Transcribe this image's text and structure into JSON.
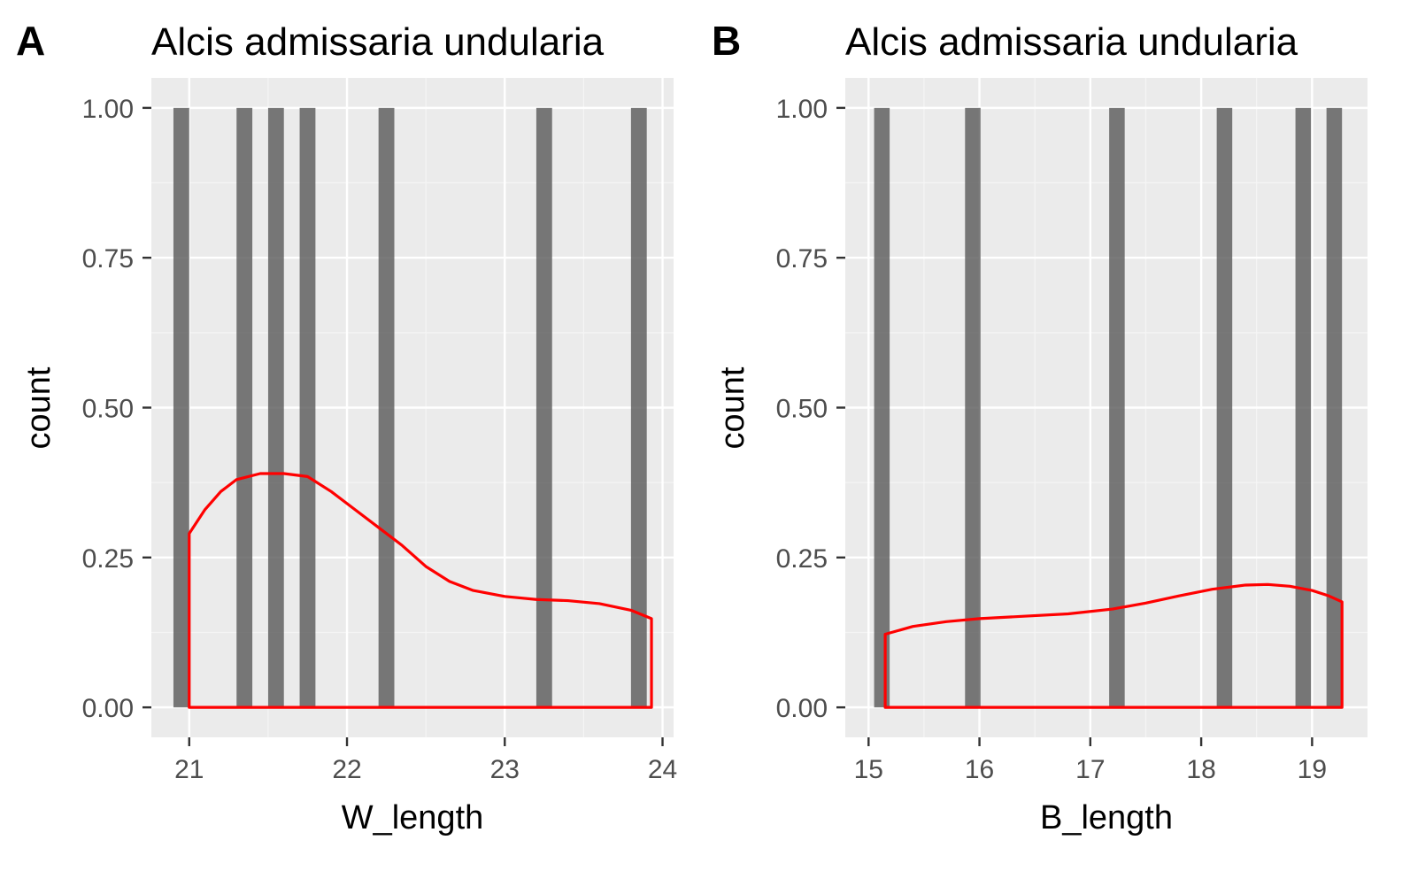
{
  "colors": {
    "panel_background": "#ebebeb",
    "grid_major": "#ffffff",
    "grid_minor": "#f5f5f5",
    "bar_fill": "#595959",
    "bar_opacity": 0.8,
    "density_line": "#ff0000",
    "tick_mark": "#333333"
  },
  "chart_data": [
    {
      "tag": "A",
      "type": "bar",
      "title": "Alcis admissaria undularia",
      "xlabel": "W_length",
      "ylabel": "count",
      "xlim": [
        20.76,
        24.07
      ],
      "ylim": [
        -0.05,
        1.05
      ],
      "grid": true,
      "legend": "none",
      "xticks": [
        21,
        22,
        23,
        24
      ],
      "xtick_labels": [
        "21",
        "22",
        "23",
        "24"
      ],
      "xminor": [
        21.5,
        22.5,
        23.5
      ],
      "yticks": [
        0,
        0.25,
        0.5,
        0.75,
        1
      ],
      "ytick_labels": [
        "0.00",
        "0.25",
        "0.50",
        "0.75",
        "1.00"
      ],
      "yminor": [
        0.125,
        0.375,
        0.625,
        0.875
      ],
      "bar_width": 0.1,
      "bars": [
        {
          "x": 20.95,
          "count": 1
        },
        {
          "x": 21.35,
          "count": 1
        },
        {
          "x": 21.55,
          "count": 1
        },
        {
          "x": 21.75,
          "count": 1
        },
        {
          "x": 22.25,
          "count": 1
        },
        {
          "x": 23.25,
          "count": 1
        },
        {
          "x": 23.85,
          "count": 1
        }
      ],
      "density": [
        {
          "x": 21.0,
          "y": 0.29
        },
        {
          "x": 21.1,
          "y": 0.33
        },
        {
          "x": 21.2,
          "y": 0.36
        },
        {
          "x": 21.3,
          "y": 0.38
        },
        {
          "x": 21.45,
          "y": 0.39
        },
        {
          "x": 21.6,
          "y": 0.39
        },
        {
          "x": 21.75,
          "y": 0.385
        },
        {
          "x": 21.9,
          "y": 0.36
        },
        {
          "x": 22.05,
          "y": 0.33
        },
        {
          "x": 22.2,
          "y": 0.3
        },
        {
          "x": 22.35,
          "y": 0.27
        },
        {
          "x": 22.5,
          "y": 0.235
        },
        {
          "x": 22.65,
          "y": 0.21
        },
        {
          "x": 22.8,
          "y": 0.195
        },
        {
          "x": 23.0,
          "y": 0.185
        },
        {
          "x": 23.2,
          "y": 0.18
        },
        {
          "x": 23.4,
          "y": 0.178
        },
        {
          "x": 23.6,
          "y": 0.173
        },
        {
          "x": 23.8,
          "y": 0.162
        },
        {
          "x": 23.93,
          "y": 0.148
        }
      ]
    },
    {
      "tag": "B",
      "type": "bar",
      "title": "Alcis admissaria undularia",
      "xlabel": "B_length",
      "ylabel": "count",
      "xlim": [
        14.79,
        19.5
      ],
      "ylim": [
        -0.05,
        1.05
      ],
      "grid": true,
      "legend": "none",
      "xticks": [
        15,
        16,
        17,
        18,
        19
      ],
      "xtick_labels": [
        "15",
        "16",
        "17",
        "18",
        "19"
      ],
      "xminor": [
        15.5,
        16.5,
        17.5,
        18.5
      ],
      "yticks": [
        0,
        0.25,
        0.5,
        0.75,
        1
      ],
      "ytick_labels": [
        "0.00",
        "0.25",
        "0.50",
        "0.75",
        "1.00"
      ],
      "yminor": [
        0.125,
        0.375,
        0.625,
        0.875
      ],
      "bar_width": 0.14,
      "bars": [
        {
          "x": 15.12,
          "count": 1
        },
        {
          "x": 15.94,
          "count": 1
        },
        {
          "x": 17.24,
          "count": 1
        },
        {
          "x": 18.21,
          "count": 1
        },
        {
          "x": 18.92,
          "count": 1
        },
        {
          "x": 19.2,
          "count": 1
        }
      ],
      "density": [
        {
          "x": 15.15,
          "y": 0.122
        },
        {
          "x": 15.4,
          "y": 0.135
        },
        {
          "x": 15.7,
          "y": 0.143
        },
        {
          "x": 16.0,
          "y": 0.148
        },
        {
          "x": 16.4,
          "y": 0.152
        },
        {
          "x": 16.8,
          "y": 0.156
        },
        {
          "x": 17.2,
          "y": 0.164
        },
        {
          "x": 17.5,
          "y": 0.174
        },
        {
          "x": 17.8,
          "y": 0.186
        },
        {
          "x": 18.1,
          "y": 0.197
        },
        {
          "x": 18.4,
          "y": 0.204
        },
        {
          "x": 18.6,
          "y": 0.205
        },
        {
          "x": 18.8,
          "y": 0.202
        },
        {
          "x": 19.0,
          "y": 0.195
        },
        {
          "x": 19.15,
          "y": 0.186
        },
        {
          "x": 19.27,
          "y": 0.176
        }
      ]
    }
  ]
}
